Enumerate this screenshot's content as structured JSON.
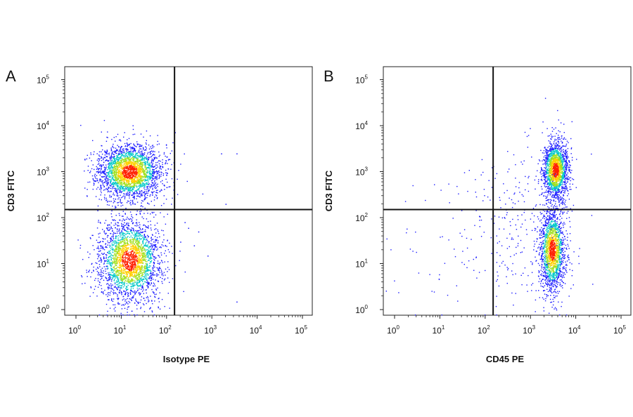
{
  "chart_data": [
    {
      "type": "scatter",
      "panel_label": "A",
      "title": "",
      "xlabel": "Isotype PE",
      "ylabel": "CD3 FITC",
      "x_scale": "log",
      "y_scale": "log",
      "xlim": [
        1,
        100000
      ],
      "ylim": [
        1,
        100000
      ],
      "x_ticks": [
        1,
        10,
        100,
        1000,
        10000,
        100000
      ],
      "y_ticks": [
        1,
        10,
        100,
        1000,
        10000,
        100000
      ],
      "tick_base": "10",
      "tick_exponents": [
        "0",
        "1",
        "2",
        "3",
        "4",
        "5"
      ],
      "quadrant_gate": {
        "x": 150,
        "y": 150
      },
      "populations": [
        {
          "x_center": 15,
          "y_center": 1000,
          "x_spread_decades": 0.35,
          "y_spread_decades": 0.3,
          "events": 2600
        },
        {
          "x_center": 15,
          "y_center": 12,
          "x_spread_decades": 0.35,
          "y_spread_decades": 0.45,
          "events": 2600
        }
      ],
      "sparse_events": [
        {
          "x": 2000,
          "y": 200
        },
        {
          "x": 3500,
          "y": 2500
        },
        {
          "x": 1600,
          "y": 2500
        },
        {
          "x": 300,
          "y": 60
        },
        {
          "x": 500,
          "y": 50
        },
        {
          "x": 200,
          "y": 30
        },
        {
          "x": 800,
          "y": 15
        },
        {
          "x": 3500,
          "y": 1.5
        },
        {
          "x": 250,
          "y": 80
        },
        {
          "x": 400,
          "y": 25
        }
      ]
    },
    {
      "type": "scatter",
      "panel_label": "B",
      "title": "",
      "xlabel": "CD45 PE",
      "ylabel": "CD3 FITC",
      "x_scale": "log",
      "y_scale": "log",
      "xlim": [
        1,
        100000
      ],
      "ylim": [
        1,
        100000
      ],
      "x_ticks": [
        1,
        10,
        100,
        1000,
        10000,
        100000
      ],
      "y_ticks": [
        1,
        10,
        100,
        1000,
        10000,
        100000
      ],
      "tick_base": "10",
      "tick_exponents": [
        "0",
        "1",
        "2",
        "3",
        "4",
        "5"
      ],
      "quadrant_gate": {
        "x": 150,
        "y": 150
      },
      "populations": [
        {
          "x_center": 3500,
          "y_center": 1100,
          "x_spread_decades": 0.14,
          "y_spread_decades": 0.32,
          "events": 1700
        },
        {
          "x_center": 3000,
          "y_center": 20,
          "x_spread_decades": 0.14,
          "y_spread_decades": 0.45,
          "events": 1700
        },
        {
          "x_center": 600,
          "y_center": 60,
          "x_spread_decades": 0.6,
          "y_spread_decades": 0.9,
          "events": 260
        },
        {
          "x_center": 10,
          "y_center": 30,
          "x_spread_decades": 0.6,
          "y_spread_decades": 0.8,
          "events": 55
        }
      ],
      "sparse_events": []
    }
  ],
  "colors": {
    "density_low": "#1a1aff",
    "density_mid": "#00c8c8",
    "density_midhigh": "#a0e020",
    "density_high": "#ffd000",
    "density_peak": "#ff2000",
    "gate_line": "#111111",
    "axis": "#222222"
  }
}
